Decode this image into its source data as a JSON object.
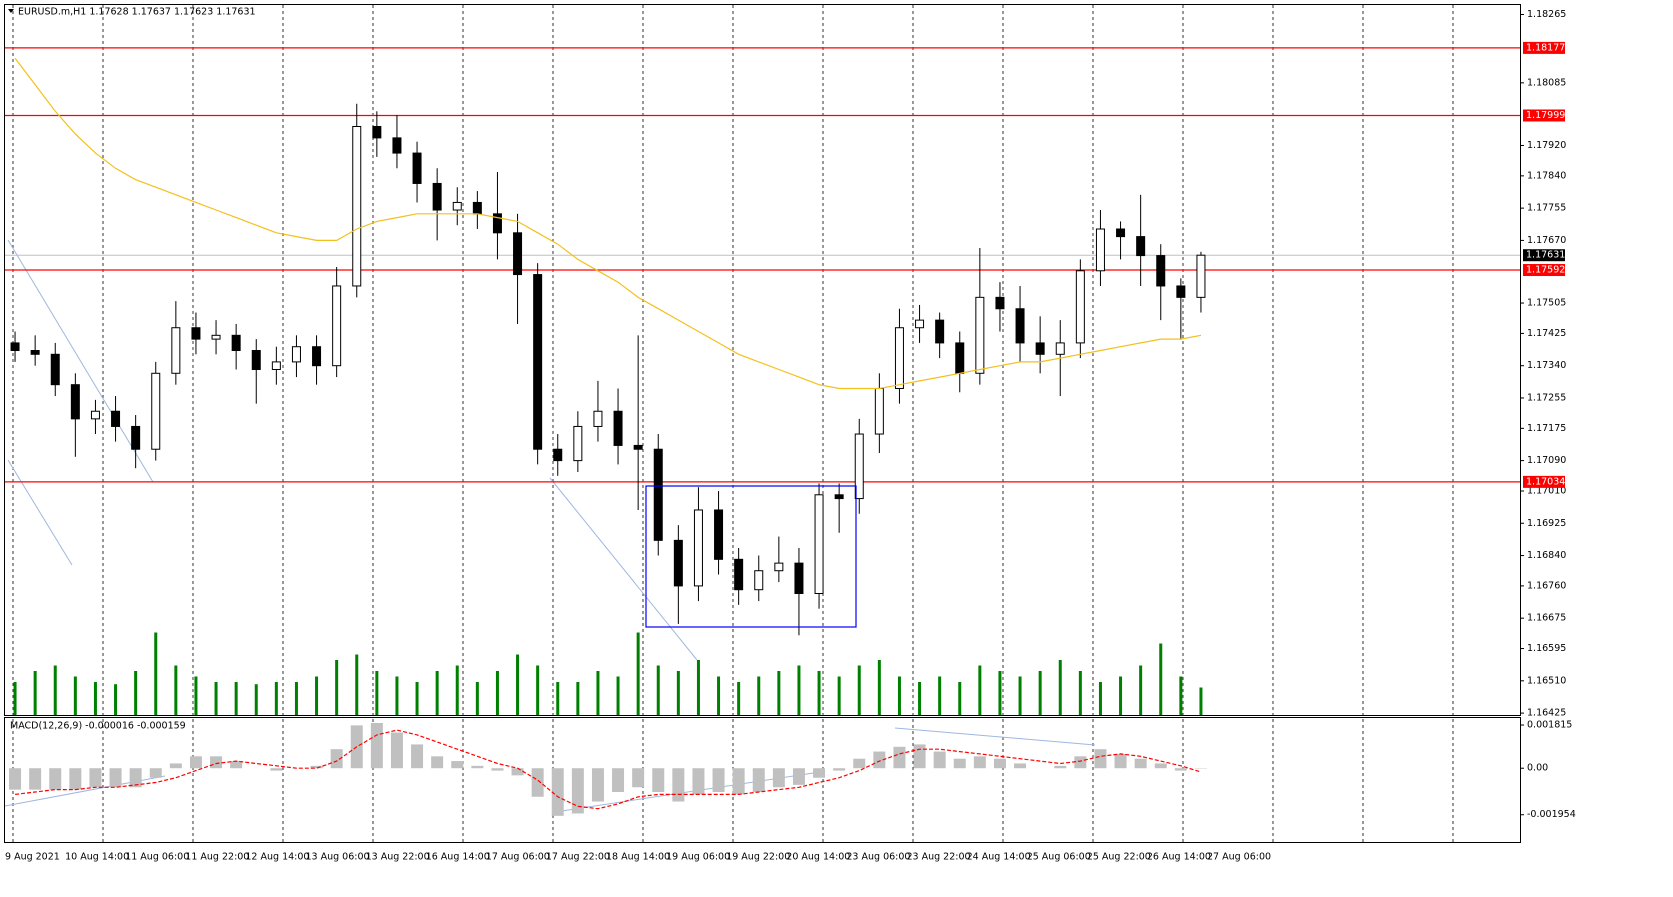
{
  "chart_data": {
    "type": "candlestick",
    "header": "EURUSD.m,H1  1.17628 1.17637 1.17623 1.17631",
    "ylim": [
      1.1642,
      1.1829
    ],
    "yticks": [
      1.18265,
      1.18085,
      {
        "value": 1.1792,
        "label": "1.17920"
      },
      {
        "value": 1.1784,
        "label": "1.17840"
      },
      1.17755,
      {
        "value": 1.1767,
        "label": "1.17670"
      },
      1.17505,
      1.17425,
      {
        "value": 1.1734,
        "label": "1.17340"
      },
      1.17255,
      1.17175,
      {
        "value": 1.1709,
        "label": "1.17090"
      },
      {
        "value": 1.1701,
        "label": "1.17010"
      },
      1.16925,
      {
        "value": 1.1684,
        "label": "1.16840"
      },
      {
        "value": 1.1676,
        "label": "1.16760"
      },
      1.16675,
      1.16595,
      {
        "value": 1.1651,
        "label": "1.16510"
      },
      1.16425
    ],
    "xlabels": [
      "9 Aug 2021",
      "10 Aug 14:00",
      "11 Aug 06:00",
      "11 Aug 22:00",
      "12 Aug 14:00",
      "13 Aug 06:00",
      "13 Aug 22:00",
      "16 Aug 14:00",
      "17 Aug 06:00",
      "17 Aug 22:00",
      "18 Aug 14:00",
      "19 Aug 06:00",
      "19 Aug 22:00",
      "20 Aug 14:00",
      "23 Aug 06:00",
      "23 Aug 22:00",
      "24 Aug 14:00",
      "25 Aug 06:00",
      "25 Aug 22:00",
      "26 Aug 14:00",
      "27 Aug 06:00"
    ],
    "open": [
      1.174,
      1.1738,
      1.1737,
      1.1729,
      1.172,
      1.1722,
      1.1718,
      1.1712,
      1.1732,
      1.1744,
      1.1741,
      1.1742,
      1.1738,
      1.1733,
      1.1735,
      1.1739,
      1.1734,
      1.1755,
      1.1797,
      1.1794,
      1.179,
      1.1782,
      1.1775,
      1.1777,
      1.1774,
      1.1769,
      1.1758,
      1.1712,
      1.1709,
      1.1718,
      1.1722,
      1.1713,
      1.1712,
      1.1688,
      1.1676,
      1.1696,
      1.1683,
      1.1675,
      1.168,
      1.1682,
      1.1674,
      1.17,
      1.1699,
      1.1716,
      1.1728,
      1.1744,
      1.1746,
      1.174,
      1.1732,
      1.1752,
      1.1749,
      1.174,
      1.1737,
      1.174,
      1.1759,
      1.177,
      1.1768,
      1.1763,
      1.1755,
      1.1752
    ],
    "high": [
      1.1743,
      1.1742,
      1.174,
      1.1732,
      1.1725,
      1.1726,
      1.1721,
      1.1735,
      1.1751,
      1.1748,
      1.1746,
      1.1745,
      1.1741,
      1.1739,
      1.1742,
      1.1742,
      1.176,
      1.1803,
      1.1801,
      1.18,
      1.1793,
      1.1786,
      1.1781,
      1.178,
      1.1785,
      1.1774,
      1.1761,
      1.1716,
      1.1722,
      1.173,
      1.1728,
      1.1742,
      1.1716,
      1.1692,
      1.1702,
      1.1701,
      1.1686,
      1.1684,
      1.1689,
      1.1686,
      1.1703,
      1.1703,
      1.172,
      1.1732,
      1.1749,
      1.175,
      1.1748,
      1.1743,
      1.1765,
      1.1756,
      1.1755,
      1.1747,
      1.1746,
      1.1762,
      1.1775,
      1.1772,
      1.1779,
      1.1766,
      1.1757,
      1.1764
    ],
    "low": [
      1.1735,
      1.1734,
      1.1726,
      1.171,
      1.1716,
      1.1714,
      1.1707,
      1.1709,
      1.1729,
      1.1737,
      1.1737,
      1.1733,
      1.1724,
      1.1729,
      1.1731,
      1.1729,
      1.1731,
      1.1752,
      1.1789,
      1.1786,
      1.1777,
      1.1767,
      1.1771,
      1.177,
      1.1762,
      1.1745,
      1.1708,
      1.1705,
      1.1706,
      1.1714,
      1.1708,
      1.1696,
      1.1684,
      1.1666,
      1.1672,
      1.1679,
      1.1671,
      1.1672,
      1.1677,
      1.1663,
      1.167,
      1.169,
      1.1695,
      1.1711,
      1.1724,
      1.174,
      1.1736,
      1.1727,
      1.1729,
      1.1743,
      1.1735,
      1.1732,
      1.1726,
      1.1736,
      1.1755,
      1.1762,
      1.1755,
      1.1746,
      1.1741,
      1.1748
    ],
    "close": [
      1.1738,
      1.1737,
      1.1729,
      1.172,
      1.1722,
      1.1718,
      1.1712,
      1.1732,
      1.1744,
      1.1741,
      1.1742,
      1.1738,
      1.1733,
      1.1735,
      1.1739,
      1.1734,
      1.1755,
      1.1797,
      1.1794,
      1.179,
      1.1782,
      1.1775,
      1.1777,
      1.1774,
      1.1769,
      1.1758,
      1.1712,
      1.1709,
      1.1718,
      1.1722,
      1.1713,
      1.1712,
      1.1688,
      1.1676,
      1.1696,
      1.1683,
      1.1675,
      1.168,
      1.1682,
      1.1674,
      1.17,
      1.1699,
      1.1716,
      1.1728,
      1.1744,
      1.1746,
      1.174,
      1.1732,
      1.1752,
      1.1749,
      1.174,
      1.1737,
      1.174,
      1.1759,
      1.177,
      1.1768,
      1.1763,
      1.1755,
      1.1752,
      1.17631
    ],
    "ma": {
      "color": "#f2c01d",
      "values": [
        1.1815,
        1.1808,
        1.1801,
        1.1795,
        1.179,
        1.1786,
        1.1783,
        1.1781,
        1.1779,
        1.1777,
        1.1775,
        1.1773,
        1.1771,
        1.1769,
        1.1768,
        1.1767,
        1.1767,
        1.177,
        1.1772,
        1.1773,
        1.1774,
        1.1774,
        1.1774,
        1.1774,
        1.1773,
        1.1772,
        1.1769,
        1.1766,
        1.1762,
        1.1759,
        1.1756,
        1.1752,
        1.1749,
        1.1746,
        1.1743,
        1.174,
        1.1737,
        1.1735,
        1.1733,
        1.1731,
        1.1729,
        1.1728,
        1.1728,
        1.1728,
        1.1729,
        1.173,
        1.1731,
        1.1732,
        1.1733,
        1.1734,
        1.1735,
        1.1735,
        1.1736,
        1.1737,
        1.1738,
        1.1739,
        1.174,
        1.1741,
        1.1741,
        1.1742
      ]
    },
    "levels": {
      "color": "#ff0000",
      "values": [
        1.18177,
        1.17999,
        1.17592,
        1.17034
      ]
    },
    "last_price": 1.17631,
    "volume": {
      "color": "#008000",
      "ylim": [
        0,
        100
      ],
      "values": [
        30,
        40,
        45,
        35,
        30,
        28,
        40,
        75,
        45,
        35,
        30,
        30,
        28,
        30,
        30,
        35,
        50,
        55,
        40,
        35,
        30,
        40,
        45,
        30,
        40,
        55,
        45,
        30,
        30,
        40,
        35,
        75,
        45,
        40,
        50,
        35,
        30,
        35,
        40,
        45,
        40,
        35,
        45,
        50,
        35,
        30,
        35,
        30,
        45,
        40,
        35,
        40,
        50,
        40,
        30,
        35,
        45,
        65,
        35,
        25
      ]
    },
    "macd": {
      "label": "MACD(12,26,9) -0.000016 -0.000159",
      "ylim": [
        -0.0031,
        0.00211
      ],
      "yticks": [
        0.001815,
        {
          "value": 0,
          "label": "0.00"
        },
        -0.001954
      ],
      "histogram_color": "#c0c0c0",
      "signal_color": "#ff0000",
      "histogram": [
        -0.0009,
        -0.0009,
        -0.0009,
        -0.0009,
        -0.0008,
        -0.0008,
        -0.0008,
        -0.0004,
        0.0002,
        0.0005,
        0.0005,
        0.0003,
        0,
        -0.0001,
        0,
        0.0001,
        0.0008,
        0.0018,
        0.0019,
        0.0015,
        0.001,
        0.0005,
        0.0003,
        0.0001,
        -0.0001,
        -0.0003,
        -0.0012,
        -0.002,
        -0.0019,
        -0.0014,
        -0.001,
        -0.0008,
        -0.001,
        -0.0014,
        -0.0011,
        -0.001,
        -0.0011,
        -0.001,
        -0.0008,
        -0.0007,
        -0.0004,
        -0.0001,
        0.0004,
        0.0007,
        0.0009,
        0.001,
        0.0007,
        0.0004,
        0.0005,
        0.0004,
        0.0002,
        0,
        0.0001,
        0.0005,
        0.0008,
        0.0006,
        0.0004,
        0.0002,
        -0.0001,
        -1.6e-05
      ],
      "signal": [
        -0.0011,
        -0.001,
        -0.0009,
        -0.0009,
        -0.0008,
        -0.0008,
        -0.0007,
        -0.0006,
        -0.0004,
        -0.0001,
        0.0002,
        0.0003,
        0.0002,
        0.0001,
        0,
        0,
        0.0003,
        0.0009,
        0.0014,
        0.0016,
        0.0014,
        0.0011,
        0.0008,
        0.0005,
        0.0002,
        0,
        -0.0005,
        -0.0012,
        -0.0016,
        -0.0017,
        -0.0015,
        -0.0012,
        -0.0011,
        -0.0011,
        -0.0011,
        -0.0011,
        -0.0011,
        -0.001,
        -0.0009,
        -0.0008,
        -0.0006,
        -0.0004,
        -0.0001,
        0.0003,
        0.0006,
        0.0008,
        0.0008,
        0.0007,
        0.0006,
        0.0005,
        0.0004,
        0.0003,
        0.0002,
        0.0003,
        0.0005,
        0.0006,
        0.0005,
        0.0003,
        0.0001,
        -0.000159
      ]
    }
  }
}
